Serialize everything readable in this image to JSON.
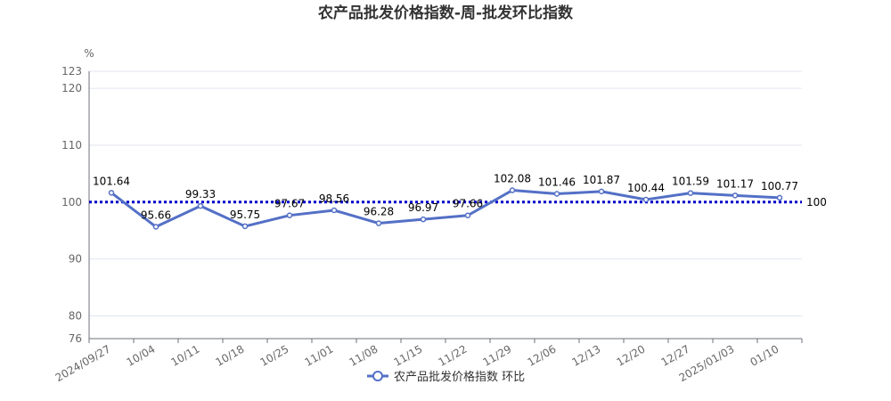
{
  "chart_data": {
    "type": "line",
    "title": "农产品批发价格指数-周-批发环比指数",
    "unit": "%",
    "categories": [
      "2024/09/27",
      "10/04",
      "10/11",
      "10/18",
      "10/25",
      "11/01",
      "11/08",
      "11/15",
      "11/22",
      "11/29",
      "12/06",
      "12/13",
      "12/20",
      "12/27",
      "2025/01/03",
      "01/10"
    ],
    "series": [
      {
        "name": "农产品批发价格指数 环比",
        "values": [
          101.64,
          95.66,
          99.33,
          95.75,
          97.67,
          98.56,
          96.28,
          96.97,
          97.66,
          102.08,
          101.46,
          101.87,
          100.44,
          101.59,
          101.17,
          100.77
        ],
        "color": "#5470c6"
      }
    ],
    "reference_line": {
      "value": 100,
      "label": "100",
      "color": "#0000cc",
      "style": "dotted"
    },
    "ylim": [
      76,
      123
    ],
    "yticks": [
      76,
      80,
      90,
      100,
      110,
      120,
      123
    ],
    "grid": true,
    "legend_position": "bottom"
  }
}
